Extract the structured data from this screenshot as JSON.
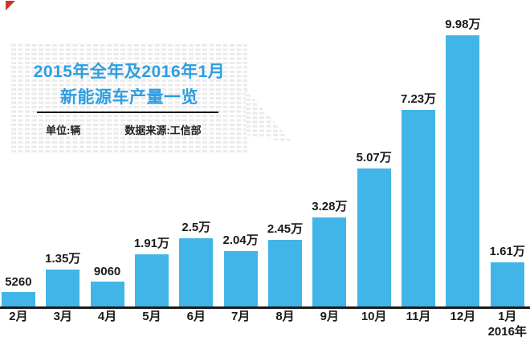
{
  "colors": {
    "bar": "#41b5e8",
    "title": "#2d9ee2",
    "text_dark": "#1a1a1a",
    "axis": "#1a1a1a",
    "corner_red": "#d23430",
    "box_dot": "#ebebeb"
  },
  "title_box": {
    "title_line1": "2015年全年及2016年1月",
    "title_line2": "新能源车产量一览",
    "unit_label": "单位:辆",
    "source_label": "数据来源:工信部"
  },
  "chart_data": {
    "type": "bar",
    "title": "2015年全年及2016年1月新能源车产量一览",
    "unit": "辆",
    "source": "工信部",
    "categories": [
      "2月",
      "3月",
      "4月",
      "5月",
      "6月",
      "7月",
      "8月",
      "9月",
      "10月",
      "11月",
      "12月",
      "1月"
    ],
    "category_sublabels": [
      "",
      "",
      "",
      "",
      "",
      "",
      "",
      "",
      "",
      "",
      "",
      "2016年"
    ],
    "values": [
      5260,
      13500,
      9060,
      19100,
      25000,
      20400,
      24500,
      32800,
      50700,
      72300,
      99800,
      16100
    ],
    "value_labels": [
      "5260",
      "1.35万",
      "9060",
      "1.91万",
      "2.5万",
      "2.04万",
      "2.45万",
      "3.28万",
      "5.07万",
      "7.23万",
      "9.98万",
      "1.61万"
    ],
    "xlabel": "",
    "ylabel": "",
    "ylim": [
      0,
      105000
    ],
    "grid": false,
    "legend": false,
    "bar_color": "#41b5e8"
  }
}
